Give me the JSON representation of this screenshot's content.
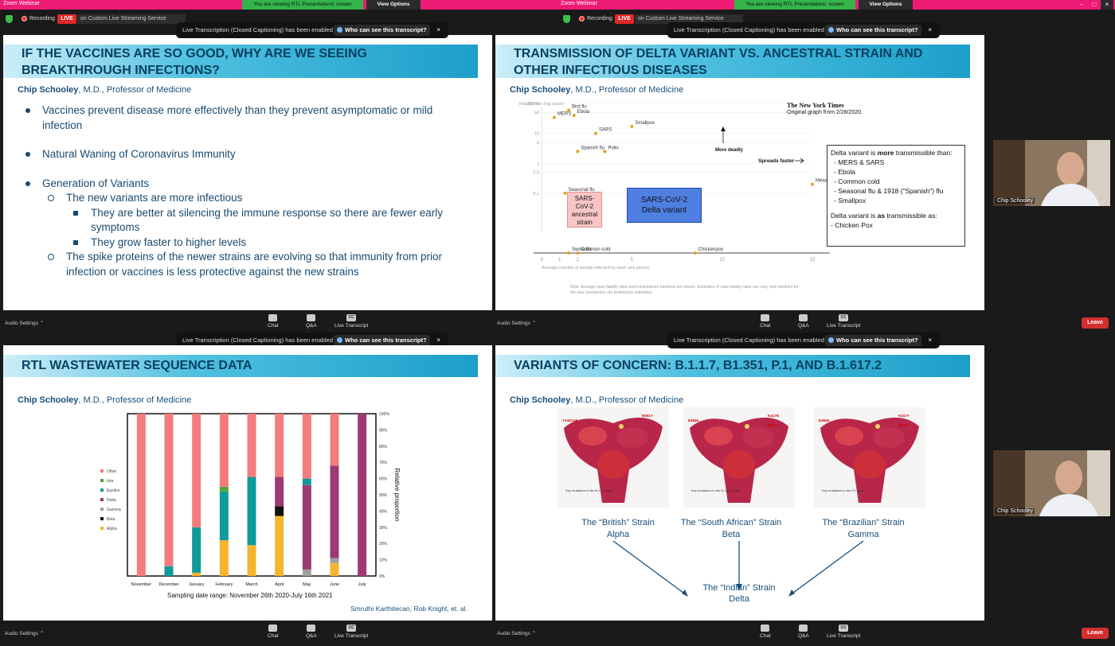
{
  "window": {
    "app_title": "Zoom Webinar",
    "share_banner": "You are viewing RTL Presentations' screen",
    "view_options": "View Options"
  },
  "status": {
    "recording": "Recording",
    "live": "LIVE",
    "live_service": "on Custom Live Streaming Service"
  },
  "captions": {
    "message": "Live Transcription (Closed Captioning) has been enabled",
    "who": "Who can see this transcript?",
    "close": "×"
  },
  "toolbar": {
    "audio_settings": "Audio Settings",
    "chat": "Chat",
    "qa": "Q&A",
    "live_transcript": "Live Transcript",
    "leave": "Leave",
    "cc": "CC"
  },
  "participant": {
    "name": "Chip Schooley"
  },
  "presenter": {
    "name": "Chip Schooley",
    "title": ", M.D., Professor of Medicine"
  },
  "slide1": {
    "title": "IF THE VACCINES ARE SO GOOD, WHY ARE WE SEEING BREAKTHROUGH INFECTIONS?",
    "bullets": [
      {
        "level": 1,
        "text": "Vaccines prevent disease more effectively than they prevent asymptomatic or mild infection"
      },
      {
        "level": 1,
        "text": "Natural Waning of Coronavirus Immunity"
      },
      {
        "level": 1,
        "text": "Generation of Variants"
      },
      {
        "level": 2,
        "text": "The new variants are more infectious"
      },
      {
        "level": 3,
        "text": "They are better at silencing the immune response so there are fewer early symptoms"
      },
      {
        "level": 3,
        "text": "They grow faster to higher levels"
      },
      {
        "level": 2,
        "text": "The spike proteins of the newer strains are evolving so that immunity from prior infection or vaccines is less protective against the new strains"
      }
    ]
  },
  "slide2": {
    "title": "TRANSMISSION OF DELTA VARIANT VS. ANCESTRAL STRAIN AND OTHER INFECTIOUS DISEASES",
    "source": "The New York Times",
    "source_note": "Original graph from 2/28/2020.",
    "ylabel": "Fatality rate (log scale)",
    "xlabel": "Average number of people infected by each sick person",
    "more_deadly": "More deadly",
    "spreads_faster": "Spreads faster",
    "footnote": "Note: Average case-fatality rates and transmission numbers are shown. Estimates of case-fatality rates can vary, and numbers for the new coronavirus are preliminary estimates.",
    "ancestral_box": "SARS-CoV-2 ancestral strain",
    "delta_box": "SARS-CoV-2 Delta variant",
    "callout_title_1": "Delta variant is ",
    "callout_title_bold": "more",
    "callout_title_2": " transmissible than:",
    "callout_items": [
      "MERS & SARS",
      "Ebola",
      "Common cold",
      "Seasonal flu & 1918 (\"Spanish\") flu",
      "Smallpox"
    ],
    "callout_as_1": "Delta variant is ",
    "callout_as_bold": "as",
    "callout_as_2": " transmissible as:",
    "callout_as_item": "- Chicken Pox",
    "chart_data": {
      "type": "scatter",
      "xlim": [
        0,
        15
      ],
      "yscale": "log",
      "xticks": [
        "0",
        "1",
        "2",
        "5",
        "10",
        "15"
      ],
      "yticks": [
        "100%",
        "50",
        "10",
        "5",
        "1",
        "0.5",
        "0.1"
      ],
      "points": [
        {
          "label": "MERS",
          "x": 0.7,
          "y": 34
        },
        {
          "label": "Bird flu",
          "x": 1.5,
          "y": 60
        },
        {
          "label": "Ebola",
          "x": 1.8,
          "y": 40
        },
        {
          "label": "Smallpox",
          "x": 5,
          "y": 17
        },
        {
          "label": "Spanish flu",
          "x": 2,
          "y": 2.5
        },
        {
          "label": "Polio",
          "x": 3.5,
          "y": 2.5
        },
        {
          "label": "SARS",
          "x": 3,
          "y": 10
        },
        {
          "label": "Swine flu",
          "x": 1.5,
          "y": 0.02
        },
        {
          "label": "Seasonal flu",
          "x": 1.3,
          "y": 0.1
        },
        {
          "label": "Common cold",
          "x": 2,
          "y": 0.01
        },
        {
          "label": "Chickenpox",
          "x": 8.5,
          "y": 0.01
        },
        {
          "label": "Measles",
          "x": 15,
          "y": 0.2
        }
      ]
    }
  },
  "slide3": {
    "title": "RTL WASTEWATER SEQUENCE DATA",
    "range_label": "Sampling date range: November 26th 2020-July 16th 2021",
    "credit": "Smruthi Karthitecan, Rob Knight, et. al.",
    "chart_data": {
      "type": "bar",
      "stacked": true,
      "categories": [
        "November",
        "December",
        "January",
        "February",
        "March",
        "April",
        "May",
        "June",
        "July"
      ],
      "ylabel": "Relative proportion",
      "ylim": [
        0,
        100
      ],
      "yticks": [
        "0%",
        "10%",
        "20%",
        "30%",
        "40%",
        "50%",
        "60%",
        "70%",
        "80%",
        "90%",
        "100%"
      ],
      "series": [
        {
          "name": "Alpha",
          "color": "#f5b52e",
          "values": [
            0,
            0,
            2,
            22,
            19,
            37,
            0,
            8,
            0
          ]
        },
        {
          "name": "Beta",
          "color": "#111111",
          "values": [
            0,
            0,
            0,
            0,
            0,
            6,
            0,
            0,
            0
          ]
        },
        {
          "name": "Gamma",
          "color": "#a0a0a0",
          "values": [
            0,
            0,
            0,
            0,
            0,
            0,
            4,
            3,
            0
          ]
        },
        {
          "name": "Delta",
          "color": "#9c3a76",
          "values": [
            0,
            0,
            0,
            0,
            0,
            18,
            52,
            57,
            100
          ]
        },
        {
          "name": "Epsilon",
          "color": "#0e9a9a",
          "values": [
            0,
            6,
            28,
            30,
            42,
            0,
            4,
            0,
            0
          ]
        },
        {
          "name": "Iota",
          "color": "#4fa83a",
          "values": [
            0,
            0,
            0,
            3,
            0,
            0,
            0,
            0,
            0
          ]
        },
        {
          "name": "Other",
          "color": "#f57c7c",
          "values": [
            100,
            94,
            70,
            45,
            39,
            39,
            40,
            32,
            0
          ]
        }
      ]
    }
  },
  "slide4": {
    "title": "VARIANTS OF CONCERN: B.1.1.7, B1.351, P.1, AND B.1.617.2",
    "spikes": [
      {
        "caption_line1": "The “British” Strain",
        "caption_line2": "Alpha",
        "key": "Key mutations in the B.1.1.7 spike"
      },
      {
        "caption_line1": "The “South African” Strain",
        "caption_line2": "Beta",
        "key": "Key mutations in the B.1.351 spike"
      },
      {
        "caption_line1": "The “Brazilian” Strain",
        "caption_line2": "Gamma",
        "key": "Key mutations in the P.1 spike"
      }
    ],
    "indian_line1": "The “Indian” Strain",
    "indian_line2": "Delta"
  }
}
